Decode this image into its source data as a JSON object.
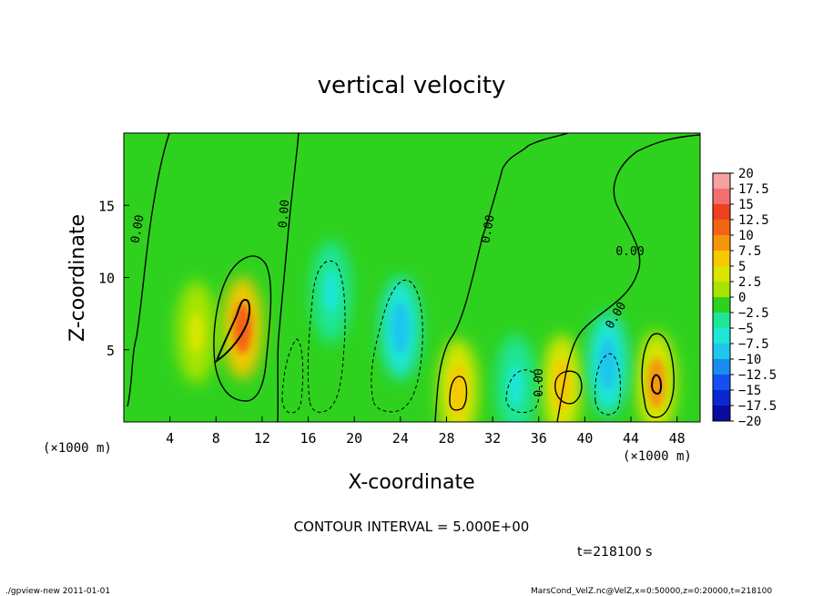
{
  "chart_data": {
    "type": "heatmap",
    "title": "vertical velocity",
    "xlabel": "X-coordinate",
    "ylabel": "Z-coordinate",
    "x_unit": "(×1000 m)",
    "x_ticks": [
      4,
      8,
      12,
      16,
      20,
      24,
      28,
      32,
      36,
      40,
      44,
      48
    ],
    "y_ticks": [
      5,
      10,
      15
    ],
    "xlim": [
      0,
      50
    ],
    "ylim": [
      0,
      20
    ],
    "contour_interval_text": "CONTOUR INTERVAL = 5.000E+00",
    "contour_labels": [
      "0.00",
      "0.00",
      "0.00",
      "0.00",
      "0.00",
      "0.00"
    ],
    "colorbar": {
      "levels": [
        "20",
        "17.5",
        "15",
        "12.5",
        "10",
        "7.5",
        "5",
        "2.5",
        "0",
        "−2.5",
        "−5",
        "−7.5",
        "−10",
        "−12.5",
        "−15",
        "−17.5",
        "−20"
      ],
      "colors": [
        "#f7a0a0",
        "#f26f6f",
        "#f0401e",
        "#f26414",
        "#f5960a",
        "#f5c800",
        "#d8e600",
        "#a8e400",
        "#2ed21e",
        "#1ee698",
        "#1ee6d8",
        "#1ec6ec",
        "#1a8cf0",
        "#1450f0",
        "#0a28d2",
        "#0a0aa0",
        "#5a0a9a"
      ]
    },
    "features": [
      {
        "kind": "updraft",
        "x": 10.3,
        "z": 6.5,
        "peak": 12.5
      },
      {
        "kind": "updraft",
        "x": 46.2,
        "z": 2.7,
        "peak": 10
      },
      {
        "kind": "updraft",
        "x": 38,
        "z": 2.5,
        "peak": 7.5
      },
      {
        "kind": "updraft",
        "x": 29,
        "z": 2.2,
        "peak": 7.5
      },
      {
        "kind": "updraft",
        "x": 6.3,
        "z": 6.2,
        "peak": 5
      },
      {
        "kind": "downdraft",
        "x": 24,
        "z": 6.5,
        "peak": -7.5
      },
      {
        "kind": "downdraft",
        "x": 18,
        "z": 9,
        "peak": -5
      },
      {
        "kind": "downdraft",
        "x": 34,
        "z": 2.5,
        "peak": -5
      },
      {
        "kind": "downdraft",
        "x": 42,
        "z": 4,
        "peak": -7.5
      }
    ],
    "time_text": "t=218100 s"
  },
  "footer": {
    "left": "./gpview-new  2011-01-01",
    "right": "MarsCond_VelZ.nc@VelZ,x=0:50000,z=0:20000,t=218100"
  }
}
